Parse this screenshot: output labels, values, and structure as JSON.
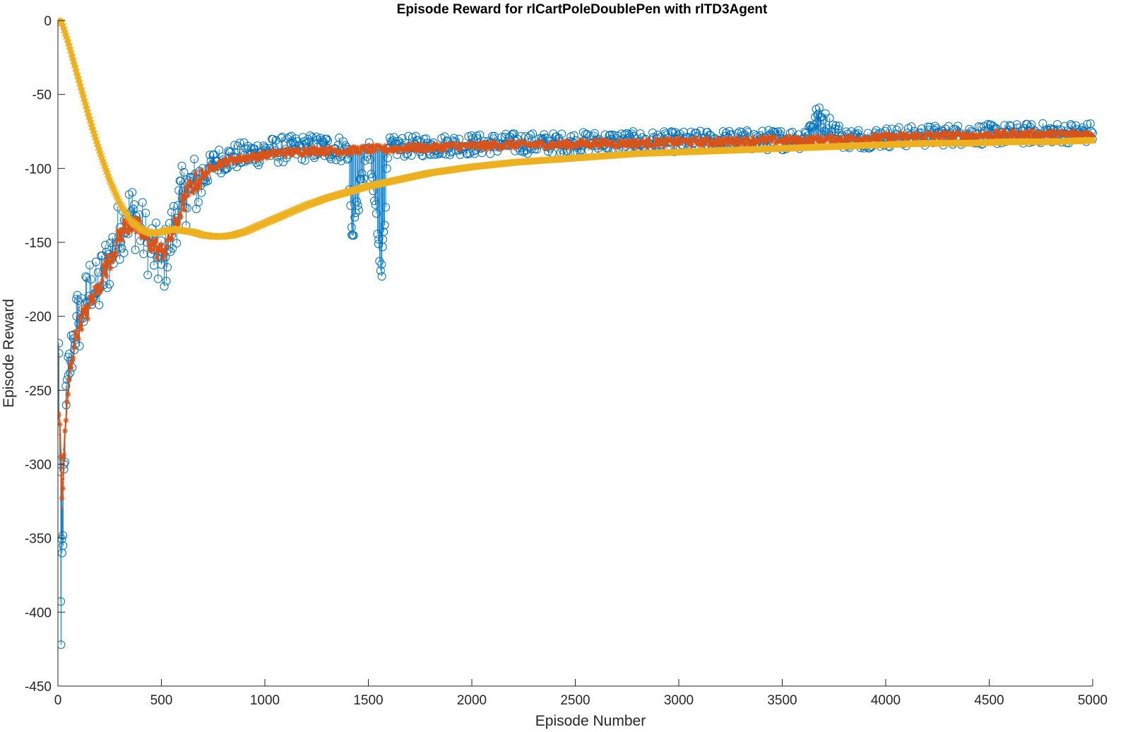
{
  "chart_data": {
    "type": "line",
    "title": "Episode Reward for rlCartPoleDoublePen with rlTD3Agent",
    "xlabel": "Episode Number",
    "ylabel": "Episode Reward",
    "xlim": [
      0,
      5000
    ],
    "ylim": [
      -450,
      0
    ],
    "xticks": [
      0,
      500,
      1000,
      1500,
      2000,
      2500,
      3000,
      3500,
      4000,
      4500,
      5000
    ],
    "yticks": [
      0,
      -50,
      -100,
      -150,
      -200,
      -250,
      -300,
      -350,
      -400,
      -450
    ],
    "grid": false,
    "legend": "none",
    "colors": {
      "episode_reward": "#0072BD",
      "average_reward": "#D95319",
      "episode_q0": "#EDB120"
    },
    "series": [
      {
        "key": "episode_reward",
        "marker": "o",
        "style": "stem",
        "x": [
          5,
          10,
          15,
          20,
          25,
          30,
          40,
          50,
          60,
          75,
          90,
          100,
          120,
          140,
          160,
          180,
          200,
          220,
          250,
          280,
          300,
          320,
          350,
          380,
          400,
          430,
          460,
          500,
          520,
          550,
          580,
          600,
          630,
          660,
          700,
          730,
          760,
          800,
          850,
          900,
          950,
          1000,
          1050,
          1100,
          1150,
          1200,
          1300,
          1400,
          1420,
          1500,
          1550,
          1565,
          1570,
          1600,
          1700,
          1800,
          1900,
          2000,
          2200,
          2400,
          2600,
          2800,
          3000,
          3200,
          3400,
          3600,
          3670,
          3800,
          4000,
          4200,
          4400,
          4600,
          4800,
          4950,
          5000
        ],
        "y": [
          -225,
          -305,
          -422,
          -360,
          -355,
          -300,
          -260,
          -240,
          -230,
          -215,
          -200,
          -205,
          -195,
          -190,
          -175,
          -185,
          -180,
          -170,
          -160,
          -150,
          -140,
          -135,
          -130,
          -135,
          -140,
          -150,
          -155,
          -165,
          -160,
          -145,
          -125,
          -120,
          -115,
          -112,
          -108,
          -100,
          -95,
          -94,
          -92,
          -91,
          -90,
          -88,
          -88,
          -87,
          -87,
          -86,
          -86,
          -87,
          -145,
          -86,
          -148,
          -173,
          -148,
          -86,
          -85,
          -85,
          -84,
          -84,
          -83,
          -83,
          -82,
          -82,
          -82,
          -81,
          -81,
          -80,
          -64,
          -80,
          -79,
          -78,
          -77,
          -77,
          -76,
          -76,
          -76
        ]
      },
      {
        "key": "average_reward",
        "marker": "*",
        "style": "line",
        "x": [
          5,
          10,
          15,
          20,
          25,
          30,
          40,
          50,
          60,
          75,
          90,
          100,
          120,
          140,
          160,
          180,
          200,
          220,
          250,
          280,
          300,
          320,
          350,
          380,
          400,
          430,
          460,
          500,
          520,
          550,
          580,
          600,
          630,
          660,
          700,
          730,
          760,
          800,
          850,
          900,
          950,
          1000,
          1050,
          1100,
          1150,
          1200,
          1300,
          1400,
          1500,
          1600,
          1700,
          1800,
          1900,
          2000,
          2200,
          2400,
          2600,
          2800,
          3000,
          3200,
          3400,
          3600,
          3800,
          4000,
          4200,
          4400,
          4600,
          4800,
          5000
        ],
        "y": [
          -265,
          -280,
          -300,
          -330,
          -310,
          -290,
          -270,
          -250,
          -235,
          -222,
          -212,
          -208,
          -200,
          -198,
          -190,
          -185,
          -180,
          -170,
          -162,
          -152,
          -145,
          -140,
          -137,
          -140,
          -143,
          -148,
          -152,
          -157,
          -153,
          -145,
          -135,
          -125,
          -115,
          -110,
          -106,
          -101,
          -98,
          -96,
          -94,
          -93,
          -92,
          -91,
          -90,
          -89,
          -89,
          -88,
          -88,
          -88,
          -87,
          -87,
          -86,
          -86,
          -85,
          -85,
          -84,
          -84,
          -83,
          -83,
          -82,
          -82,
          -81,
          -81,
          -80,
          -79,
          -78,
          -78,
          -77,
          -77,
          -77
        ]
      },
      {
        "key": "episode_q0",
        "marker": "x",
        "style": "line",
        "x": [
          0,
          20,
          50,
          100,
          150,
          200,
          250,
          300,
          350,
          400,
          450,
          500,
          550,
          600,
          650,
          700,
          750,
          800,
          850,
          900,
          950,
          1000,
          1100,
          1200,
          1300,
          1400,
          1500,
          1600,
          1700,
          1800,
          1900,
          2000,
          2200,
          2400,
          2600,
          2800,
          3000,
          3200,
          3400,
          3600,
          3800,
          4000,
          4200,
          4400,
          4600,
          4800,
          5000
        ],
        "y": [
          0,
          -2,
          -15,
          -40,
          -65,
          -88,
          -108,
          -124,
          -135,
          -141,
          -144,
          -143,
          -141,
          -142,
          -143,
          -145,
          -146,
          -146,
          -145,
          -143,
          -140,
          -137,
          -131,
          -125,
          -120,
          -116,
          -112,
          -109,
          -106,
          -103,
          -101,
          -99,
          -96,
          -94,
          -92,
          -90,
          -89,
          -88,
          -87,
          -86,
          -85,
          -84,
          -83,
          -83,
          -82,
          -82,
          -81
        ]
      }
    ]
  }
}
